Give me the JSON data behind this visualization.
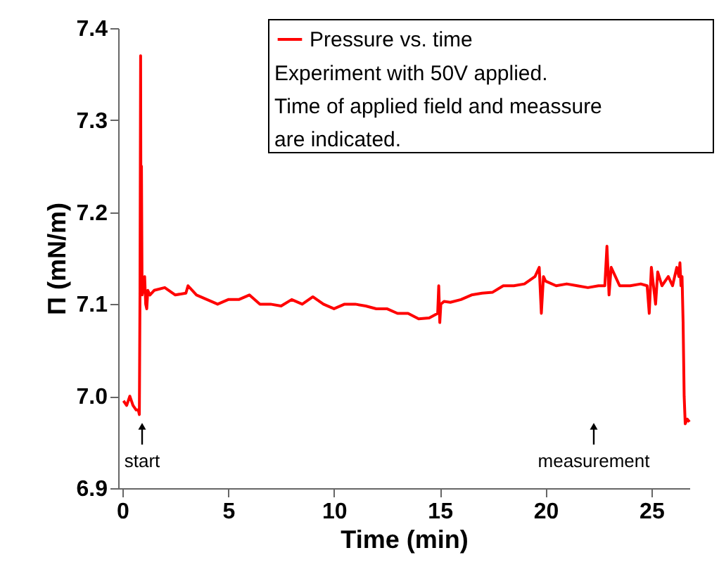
{
  "chart_data": {
    "type": "line",
    "xlabel": "Time (min)",
    "ylabel": "Π (mN/m)",
    "xlim": [
      -0.2,
      26.8
    ],
    "xticks": [
      0,
      5,
      10,
      15,
      20,
      25
    ],
    "ylim": [
      6.9,
      7.4
    ],
    "yticks": [
      6.9,
      {
        "value": 7,
        "label": "7.0"
      },
      7.1,
      7.2,
      7.3,
      7.4
    ],
    "grid": false,
    "legend": "top",
    "marker": "none",
    "line_style": "solid",
    "series": [
      {
        "name": "Pressure vs. time",
        "color": "#ff0000",
        "x": [
          0.05,
          0.2,
          0.35,
          0.5,
          0.65,
          0.75,
          0.8,
          0.83,
          0.86,
          0.88,
          0.9,
          0.93,
          0.97,
          1.05,
          1.1,
          1.15,
          1.2,
          1.3,
          1.5,
          2.0,
          2.5,
          3.0,
          3.1,
          3.5,
          4.0,
          4.5,
          5.0,
          5.5,
          6.0,
          6.5,
          7.0,
          7.5,
          8.0,
          8.5,
          9.0,
          9.5,
          10.0,
          10.5,
          11.0,
          11.5,
          12.0,
          12.5,
          13.0,
          13.5,
          14.0,
          14.5,
          14.9,
          14.95,
          15.0,
          15.05,
          15.2,
          15.5,
          16.0,
          16.5,
          17.0,
          17.5,
          18.0,
          18.5,
          19.0,
          19.5,
          19.7,
          19.8,
          19.9,
          20.0,
          20.5,
          21.0,
          21.5,
          22.0,
          22.5,
          22.8,
          22.9,
          23.0,
          23.1,
          23.3,
          23.5,
          24.0,
          24.5,
          24.8,
          24.9,
          25.0,
          25.1,
          25.2,
          25.3,
          25.5,
          25.8,
          26.0,
          26.2,
          26.3,
          26.35,
          26.4,
          26.45,
          26.5,
          26.55,
          26.6,
          26.7,
          26.8
        ],
        "values": [
          6.995,
          6.99,
          7.0,
          6.99,
          6.985,
          6.985,
          6.98,
          7.11,
          7.37,
          7.12,
          7.25,
          7.11,
          7.115,
          7.13,
          7.1,
          7.095,
          7.115,
          7.11,
          7.115,
          7.118,
          7.11,
          7.112,
          7.12,
          7.11,
          7.105,
          7.1,
          7.105,
          7.105,
          7.11,
          7.1,
          7.1,
          7.098,
          7.105,
          7.1,
          7.108,
          7.1,
          7.095,
          7.1,
          7.1,
          7.098,
          7.095,
          7.095,
          7.09,
          7.09,
          7.084,
          7.085,
          7.09,
          7.12,
          7.08,
          7.1,
          7.103,
          7.102,
          7.105,
          7.11,
          7.112,
          7.113,
          7.12,
          7.12,
          7.122,
          7.13,
          7.14,
          7.09,
          7.13,
          7.125,
          7.12,
          7.122,
          7.12,
          7.118,
          7.12,
          7.12,
          7.163,
          7.11,
          7.14,
          7.13,
          7.12,
          7.12,
          7.122,
          7.12,
          7.09,
          7.14,
          7.12,
          7.1,
          7.135,
          7.12,
          7.13,
          7.12,
          7.14,
          7.13,
          7.145,
          7.12,
          7.13,
          7.08,
          7.0,
          6.97,
          6.975,
          6.972
        ]
      }
    ],
    "annotations": [
      "Experiment with 50V applied.",
      "Time of applied field and meassure",
      "are indicated.",
      "start",
      "measurement"
    ]
  }
}
